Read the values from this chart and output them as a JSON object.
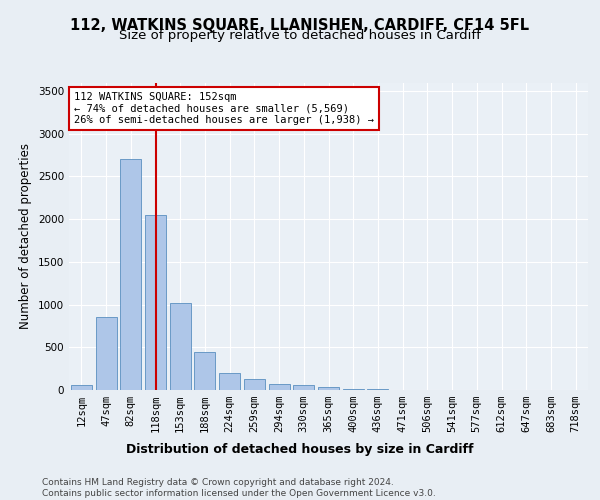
{
  "title": "112, WATKINS SQUARE, LLANISHEN, CARDIFF, CF14 5FL",
  "subtitle": "Size of property relative to detached houses in Cardiff",
  "xlabel": "Distribution of detached houses by size in Cardiff",
  "ylabel": "Number of detached properties",
  "categories": [
    "12sqm",
    "47sqm",
    "82sqm",
    "118sqm",
    "153sqm",
    "188sqm",
    "224sqm",
    "259sqm",
    "294sqm",
    "330sqm",
    "365sqm",
    "400sqm",
    "436sqm",
    "471sqm",
    "506sqm",
    "541sqm",
    "577sqm",
    "612sqm",
    "647sqm",
    "683sqm",
    "718sqm"
  ],
  "values": [
    60,
    850,
    2700,
    2050,
    1020,
    450,
    200,
    130,
    70,
    55,
    40,
    10,
    8,
    5,
    3,
    2,
    1,
    1,
    0,
    0,
    0
  ],
  "bar_color": "#aec6e8",
  "bar_edge_color": "#5a8fc0",
  "vline_x_index": 3,
  "vline_color": "#cc0000",
  "annotation_box_line1": "112 WATKINS SQUARE: 152sqm",
  "annotation_box_line2": "← 74% of detached houses are smaller (5,569)",
  "annotation_box_line3": "26% of semi-detached houses are larger (1,938) →",
  "annotation_box_color": "#cc0000",
  "annotation_box_facecolor": "white",
  "footer_text": "Contains HM Land Registry data © Crown copyright and database right 2024.\nContains public sector information licensed under the Open Government Licence v3.0.",
  "ylim": [
    0,
    3600
  ],
  "yticks": [
    0,
    500,
    1000,
    1500,
    2000,
    2500,
    3000,
    3500
  ],
  "background_color": "#e8eef4",
  "plot_background": "#eaf0f6",
  "grid_color": "white",
  "title_fontsize": 10.5,
  "subtitle_fontsize": 9.5,
  "xlabel_fontsize": 9,
  "ylabel_fontsize": 8.5,
  "tick_fontsize": 7.5,
  "annotation_fontsize": 7.5,
  "footer_fontsize": 6.5
}
